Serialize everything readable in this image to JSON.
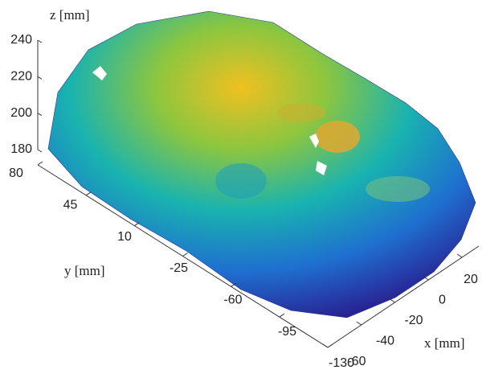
{
  "chart_data": {
    "type": "surface3d",
    "xlabel": "x [mm]",
    "ylabel": "y [mm]",
    "zlabel": "z [mm]",
    "xlim": [
      -60,
      30
    ],
    "xticks": [
      -60,
      -40,
      -20,
      0,
      20
    ],
    "ylim": [
      80,
      -130
    ],
    "yticks": [
      80,
      45,
      10,
      -25,
      -60,
      -95,
      -130
    ],
    "zlim": [
      180,
      240
    ],
    "zticks": [
      180,
      200,
      220,
      240
    ],
    "colormap": [
      "#2a1a8c",
      "#1f6fd0",
      "#19b3b0",
      "#8cc63f",
      "#f0c020"
    ]
  }
}
